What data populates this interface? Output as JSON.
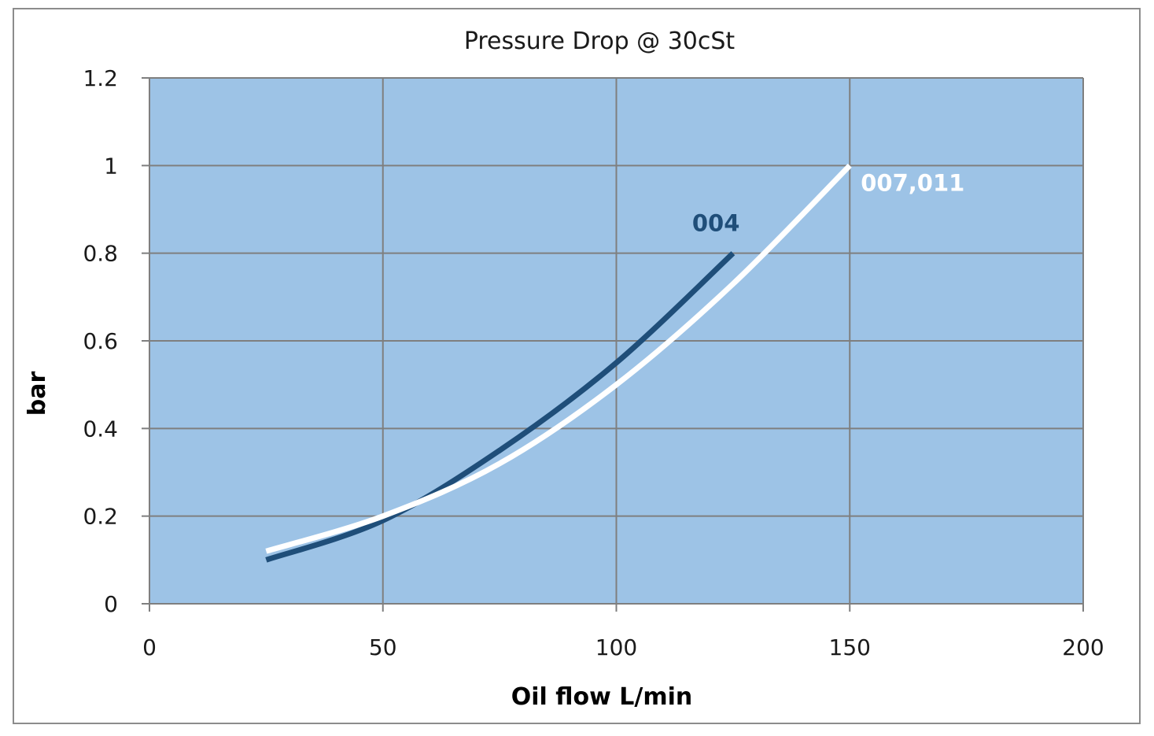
{
  "chart_data": {
    "type": "line",
    "title": "Pressure Drop @ 30cSt",
    "xlabel": "Oil flow L/min",
    "ylabel": "bar",
    "xlim": [
      0,
      200
    ],
    "ylim": [
      0,
      1.2
    ],
    "xticks": [
      "0",
      "50",
      "100",
      "150",
      "200"
    ],
    "yticks": [
      "0",
      "0.2",
      "0.4",
      "0.6",
      "0.8",
      "1",
      "1.2"
    ],
    "grid": true,
    "plot_background": "#9dc3e6",
    "series": [
      {
        "name": "004",
        "color": "#1f4e79",
        "x": [
          25,
          50,
          75,
          100,
          125
        ],
        "y": [
          0.1,
          0.19,
          0.35,
          0.55,
          0.8
        ]
      },
      {
        "name": "007,011",
        "color": "#ffffff",
        "x": [
          25,
          50,
          75,
          100,
          125,
          150
        ],
        "y": [
          0.12,
          0.2,
          0.32,
          0.5,
          0.73,
          1.0
        ]
      }
    ]
  }
}
